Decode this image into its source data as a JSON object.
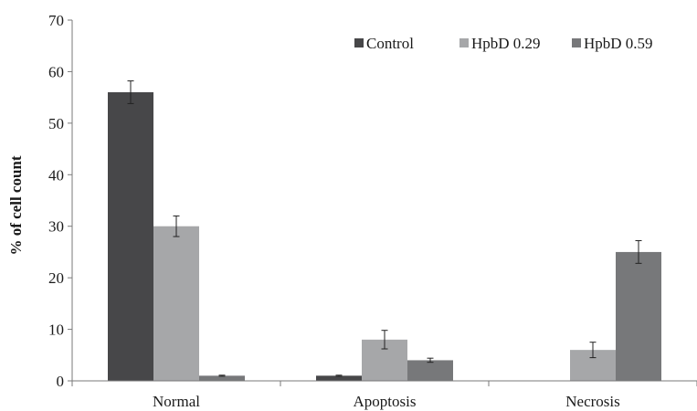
{
  "chart_data": {
    "type": "bar",
    "title": "",
    "xlabel": "",
    "ylabel": "% of cell count",
    "ylim": [
      0,
      70
    ],
    "yticks": [
      0,
      10,
      20,
      30,
      40,
      50,
      60,
      70
    ],
    "grid": false,
    "legend_position": "top-right",
    "categories": [
      "Normal",
      "Apoptosis",
      "Necrosis"
    ],
    "series": [
      {
        "name": "Control",
        "color": "#474749",
        "values": [
          56,
          1,
          0
        ],
        "errors": [
          2.2,
          0.1,
          0
        ]
      },
      {
        "name": "HpbD 0.29",
        "color": "#a6a7a9",
        "values": [
          30,
          8,
          6
        ],
        "errors": [
          2.0,
          1.8,
          1.5
        ]
      },
      {
        "name": "HpbD 0.59",
        "color": "#77787a",
        "values": [
          1,
          4,
          25
        ],
        "errors": [
          0.1,
          0.4,
          2.2
        ]
      }
    ]
  }
}
